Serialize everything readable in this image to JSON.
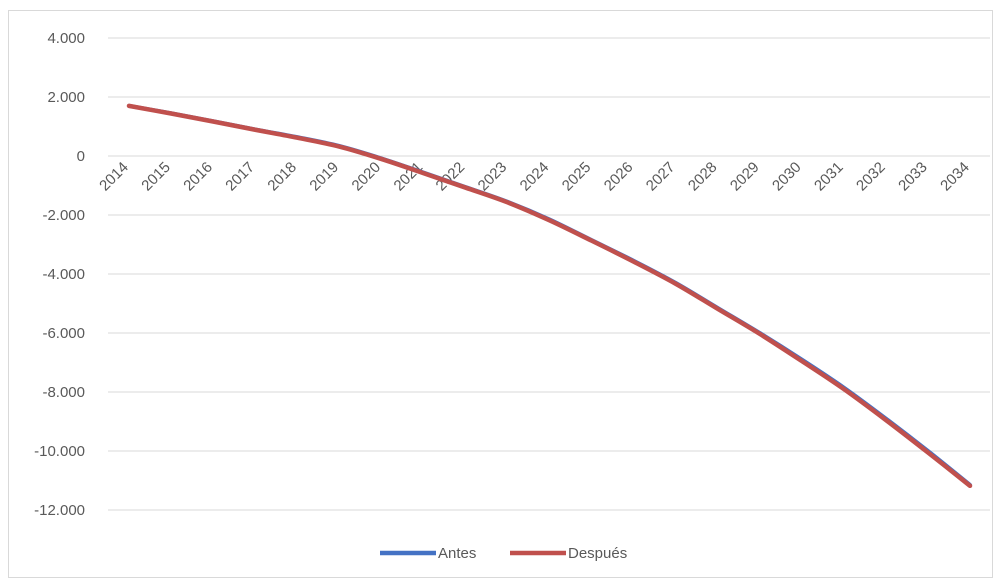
{
  "chart_data": {
    "type": "line",
    "title": "",
    "xlabel": "",
    "ylabel": "",
    "x": [
      "2014",
      "2015",
      "2016",
      "2017",
      "2018",
      "2019",
      "2020",
      "2021",
      "2022",
      "2023",
      "2024",
      "2025",
      "2026",
      "2027",
      "2028",
      "2029",
      "2030",
      "2031",
      "2032",
      "2033",
      "2034"
    ],
    "ylim": [
      -12000,
      4000
    ],
    "yticks": [
      4000,
      2000,
      0,
      -2000,
      -4000,
      -6000,
      -8000,
      -10000,
      -12000
    ],
    "ytick_labels": [
      "4.000",
      "2.000",
      "0",
      "-2.000",
      "-4.000",
      "-6.000",
      "-8.000",
      "-10.000",
      "-12.000"
    ],
    "grid": true,
    "legend_position": "bottom",
    "series": [
      {
        "name": "Antes",
        "color": "#4472c4",
        "values": [
          1700,
          1450,
          1180,
          900,
          640,
          340,
          -80,
          -560,
          -1050,
          -1550,
          -2150,
          -2850,
          -3550,
          -4300,
          -5150,
          -6000,
          -6900,
          -7850,
          -8900,
          -10000,
          -11150
        ]
      },
      {
        "name": "Después",
        "color": "#c0504d",
        "values": [
          1700,
          1440,
          1170,
          890,
          620,
          320,
          -100,
          -580,
          -1070,
          -1570,
          -2180,
          -2870,
          -3580,
          -4330,
          -5180,
          -6030,
          -6950,
          -7900,
          -8950,
          -10050,
          -11180
        ]
      }
    ]
  }
}
